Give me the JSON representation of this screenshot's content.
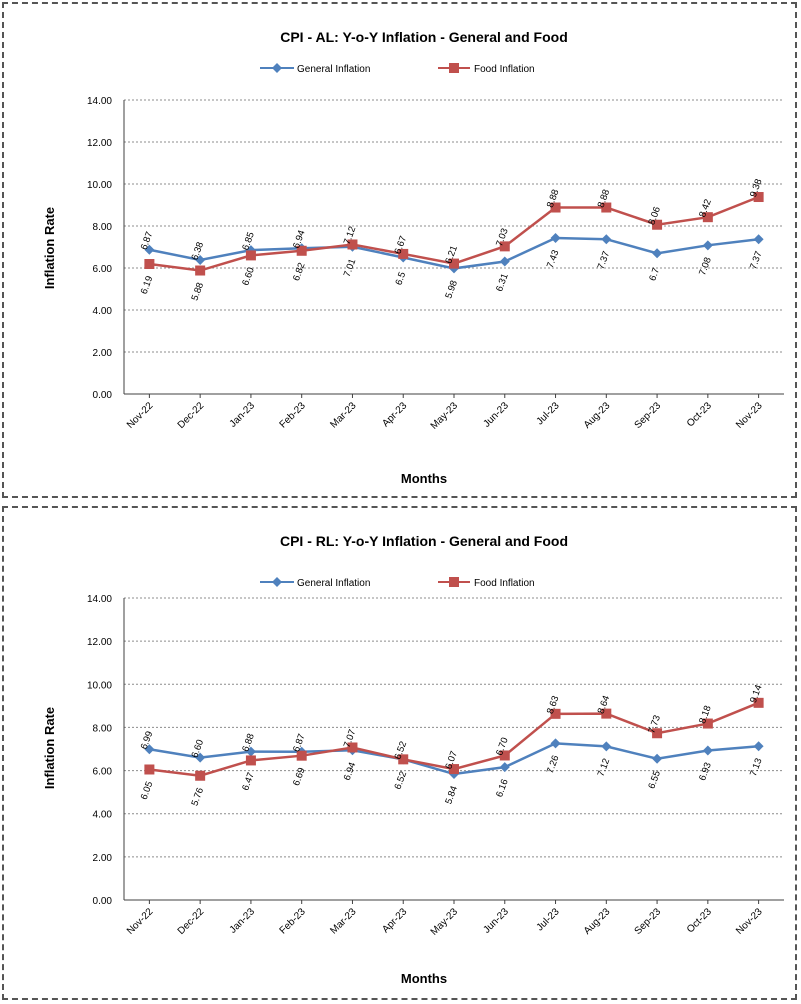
{
  "colors": {
    "general": "#4F81BD",
    "food": "#C0504D"
  },
  "chart_data": [
    {
      "type": "line",
      "title": "CPI - AL: Y-o-Y Inflation - General and Food",
      "xlabel": "Months",
      "ylabel": "Inflation Rate",
      "ylim": [
        0,
        14
      ],
      "yticks": [
        "0.00",
        "2.00",
        "4.00",
        "6.00",
        "8.00",
        "10.00",
        "12.00",
        "14.00"
      ],
      "grid": true,
      "legend": "top",
      "categories": [
        "Nov-22",
        "Dec-22",
        "Jan-23",
        "Feb-23",
        "Mar-23",
        "Apr-23",
        "May-23",
        "Jun-23",
        "Jul-23",
        "Aug-23",
        "Sep-23",
        "Oct-23",
        "Nov-23"
      ],
      "series": [
        {
          "name": "General Inflation",
          "values": [
            6.87,
            6.38,
            6.85,
            6.94,
            7.01,
            6.5,
            5.98,
            6.31,
            7.43,
            7.37,
            6.7,
            7.08,
            7.37
          ],
          "labels": [
            "6.87",
            "6.38",
            "6.85",
            "6.94",
            "7.01",
            "6.5",
            "5.98",
            "6.31",
            "7.43",
            "7.37",
            "6.7",
            "7.08",
            "7.37"
          ]
        },
        {
          "name": "Food Inflation",
          "values": [
            6.19,
            5.88,
            6.6,
            6.82,
            7.12,
            6.67,
            6.21,
            7.03,
            8.88,
            8.88,
            8.06,
            8.42,
            9.38
          ],
          "labels": [
            "6.19",
            "5.88",
            "6.60",
            "6.82",
            "7.12",
            "6.67",
            "6.21",
            "7.03",
            "8.88",
            "8.88",
            "8.06",
            "8.42",
            "9.38"
          ]
        }
      ]
    },
    {
      "type": "line",
      "title": "CPI - RL: Y-o-Y Inflation - General and Food",
      "xlabel": "Months",
      "ylabel": "Inflation Rate",
      "ylim": [
        0,
        14
      ],
      "yticks": [
        "0.00",
        "2.00",
        "4.00",
        "6.00",
        "8.00",
        "10.00",
        "12.00",
        "14.00"
      ],
      "grid": true,
      "legend": "top",
      "categories": [
        "Nov-22",
        "Dec-22",
        "Jan-23",
        "Feb-23",
        "Mar-23",
        "Apr-23",
        "May-23",
        "Jun-23",
        "Jul-23",
        "Aug-23",
        "Sep-23",
        "Oct-23",
        "Nov-23"
      ],
      "series": [
        {
          "name": "General Inflation",
          "values": [
            6.99,
            6.6,
            6.88,
            6.87,
            6.94,
            6.52,
            5.84,
            6.16,
            7.26,
            7.12,
            6.55,
            6.93,
            7.13
          ],
          "labels": [
            "6.99",
            "6.60",
            "6.88",
            "6.87",
            "6.94",
            "6.52",
            "5.84",
            "6.16",
            "7.26",
            "7.12",
            "6.55",
            "6.93",
            "7.13"
          ]
        },
        {
          "name": "Food Inflation",
          "values": [
            6.05,
            5.76,
            6.47,
            6.69,
            7.07,
            6.52,
            6.07,
            6.7,
            8.63,
            8.64,
            7.73,
            8.18,
            9.14
          ],
          "labels": [
            "6.05",
            "5.76",
            "6.47",
            "6.69",
            "7.07",
            "6.52",
            "6.07",
            "6.70",
            "8.63",
            "8.64",
            "7.73",
            "8.18",
            "9.14"
          ]
        }
      ]
    }
  ]
}
